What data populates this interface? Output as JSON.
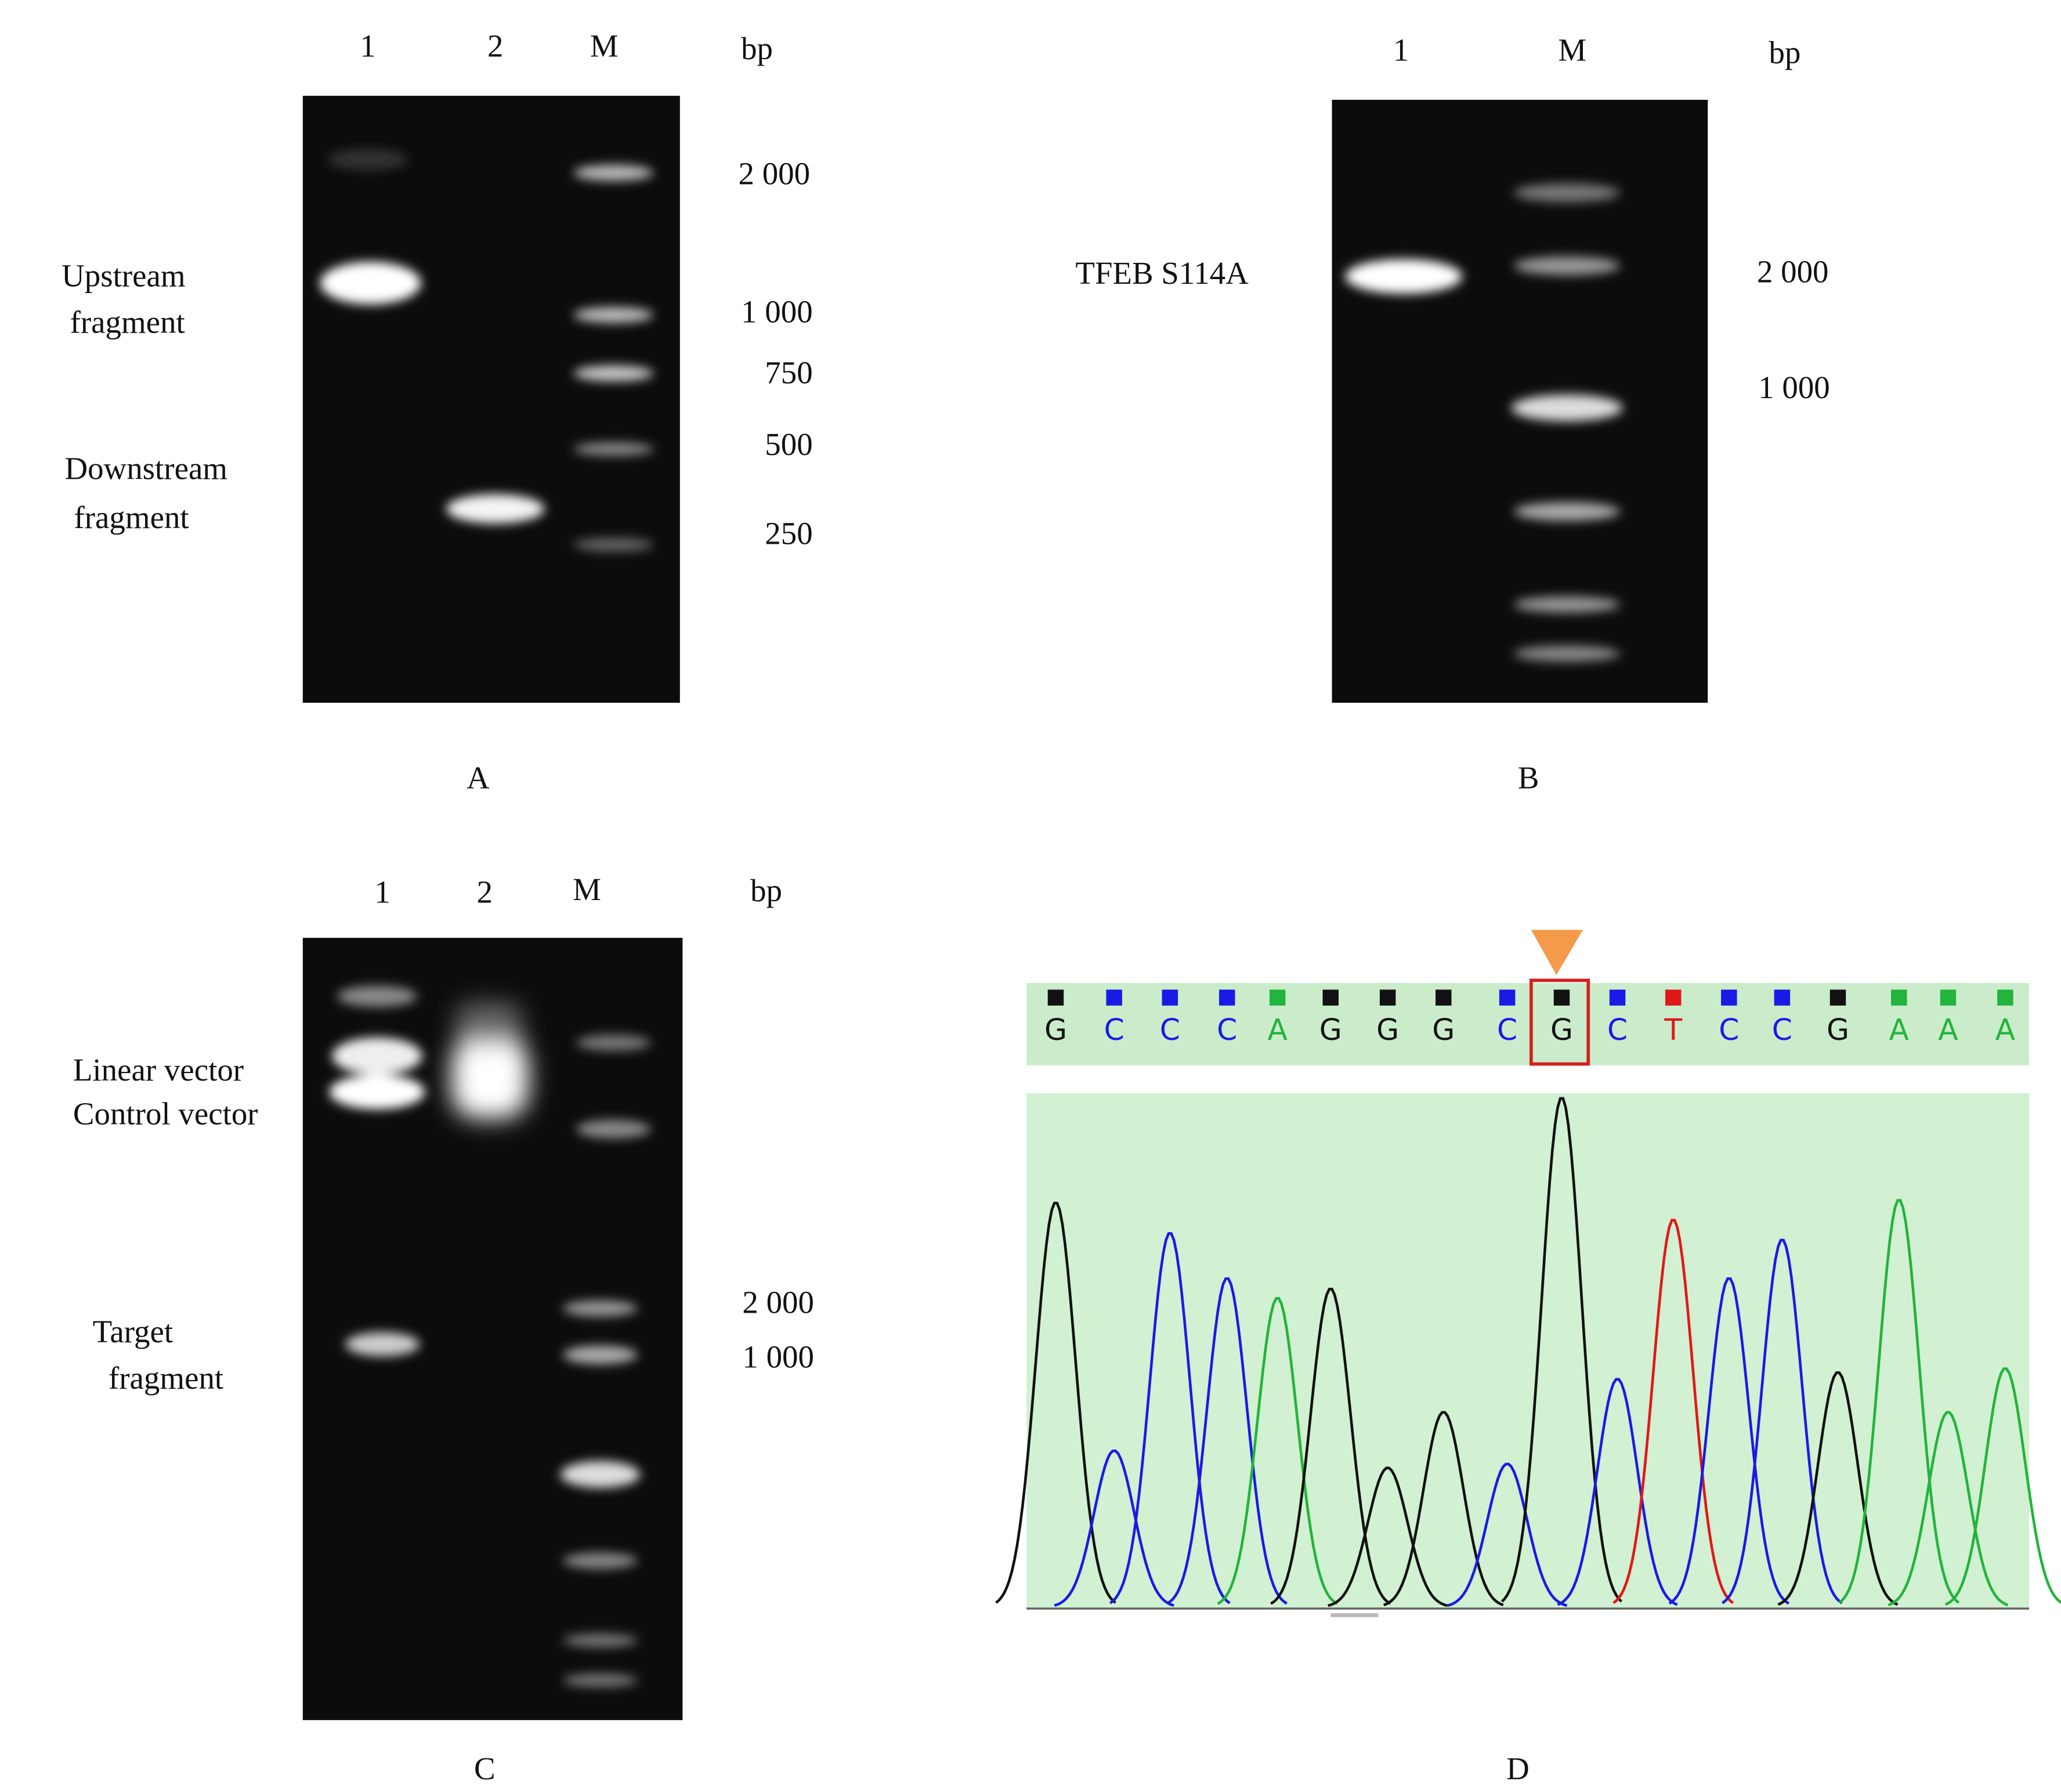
{
  "panels": {
    "A": {
      "label": "A",
      "lanes": [
        "1",
        "2",
        "M"
      ],
      "unit": "bp",
      "markers": [
        "2 000",
        "1 000",
        "750",
        "500",
        "250"
      ],
      "annotations": [
        [
          "Upstream",
          "fragment"
        ],
        [
          "Downstream",
          "fragment"
        ]
      ]
    },
    "B": {
      "label": "B",
      "lanes": [
        "1",
        "M"
      ],
      "unit": "bp",
      "markers": [
        "2 000",
        "1 000"
      ],
      "annotations": [
        [
          "TFEB S114A"
        ]
      ]
    },
    "C": {
      "label": "C",
      "lanes": [
        "1",
        "2",
        "M"
      ],
      "unit": "bp",
      "markers": [
        "2 000",
        "1 000"
      ],
      "annotations": [
        [
          "Linear vector",
          "Control vector"
        ],
        [
          "Target",
          "fragment"
        ]
      ]
    },
    "D": {
      "label": "D",
      "sequence": [
        "G",
        "C",
        "C",
        "C",
        "A",
        "G",
        "G",
        "G",
        "C",
        "G",
        "C",
        "T",
        "C",
        "C",
        "G",
        "A",
        "A",
        "A"
      ],
      "base_colors": {
        "A": "#22b43c",
        "C": "#1a1ae6",
        "G": "#111111",
        "T": "#e01818"
      }
    }
  }
}
